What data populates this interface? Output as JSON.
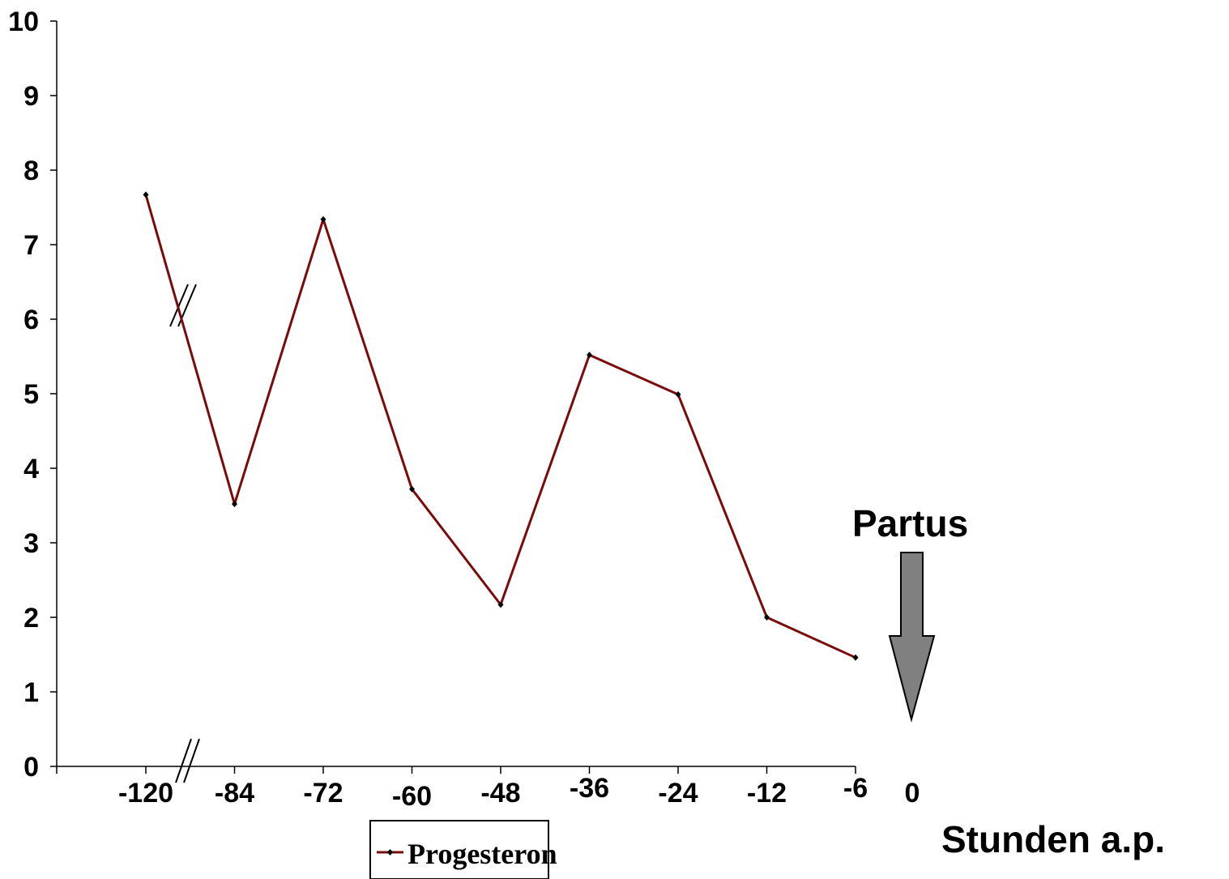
{
  "chart_data": {
    "type": "line",
    "title": "",
    "xlabel": "Stunden a.p.",
    "ylabel": "",
    "ylim": [
      0,
      10
    ],
    "y_ticks": [
      "0",
      "1",
      "2",
      "3",
      "4",
      "5",
      "6",
      "7",
      "8",
      "9",
      "10"
    ],
    "categories": [
      "-120",
      "-84",
      "-72",
      "-60",
      "-48",
      "-36",
      "-24",
      "-12",
      "-6"
    ],
    "extra_x_label": "0",
    "series": [
      {
        "name": "Progesteron",
        "color": "#7b0a0a",
        "values": [
          7.67,
          3.52,
          7.34,
          3.72,
          2.17,
          5.52,
          4.99,
          2.0,
          1.46
        ]
      }
    ],
    "annotation": {
      "text": "Partus",
      "arrow_color": "#808080"
    },
    "axis_break": true,
    "grid": false,
    "legend_position": "bottom-center"
  }
}
